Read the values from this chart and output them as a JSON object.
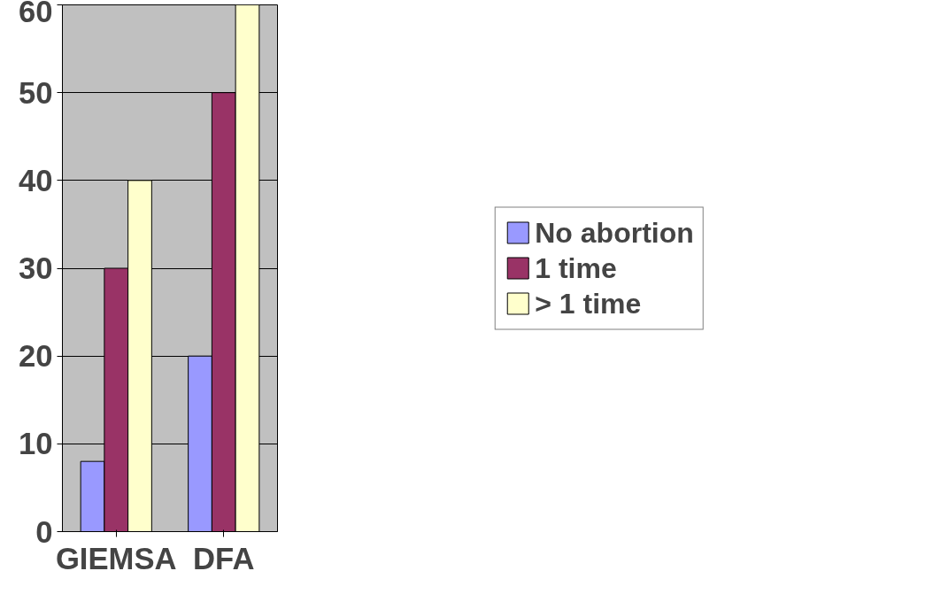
{
  "chart_data": {
    "type": "bar",
    "categories": [
      "GIEMSA",
      "DFA"
    ],
    "series": [
      {
        "name": "No abortion",
        "color": "#9999ff",
        "values": [
          8,
          20
        ]
      },
      {
        "name": "1 time",
        "color": "#993366",
        "values": [
          30,
          50
        ]
      },
      {
        "name": "> 1 time",
        "color": "#ffffcc",
        "values": [
          40,
          60
        ]
      }
    ],
    "ylim": [
      0,
      60
    ],
    "yticks": [
      0,
      10,
      20,
      30,
      40,
      50,
      60
    ],
    "grid": "y",
    "legend": "right"
  }
}
